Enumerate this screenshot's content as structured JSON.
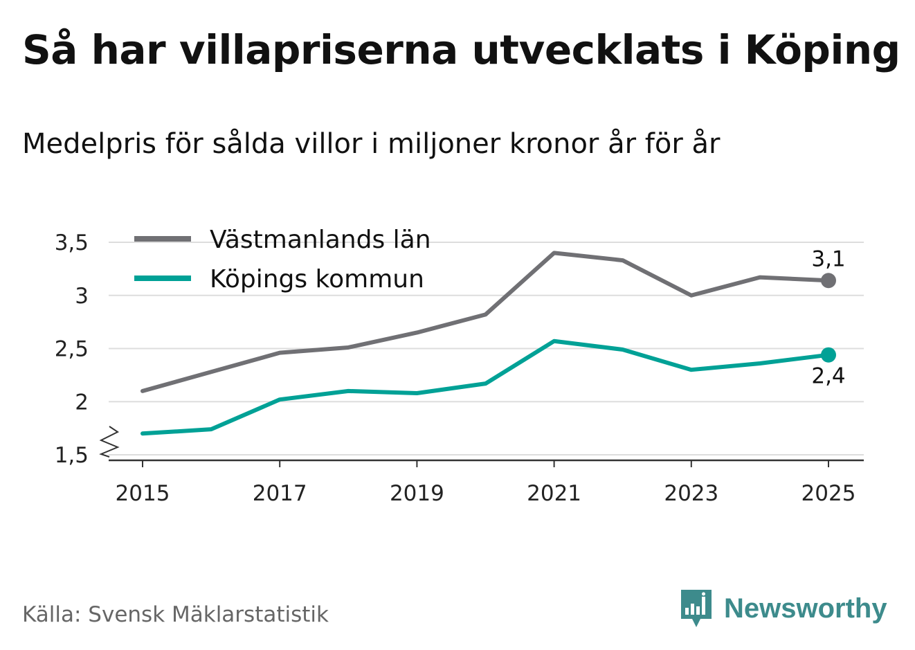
{
  "header": {
    "title": "Så har villapriserna utvecklats i Köping",
    "subtitle": "Medelpris för sålda villor i miljoner kronor år för år"
  },
  "footer": {
    "source": "Källa: Svensk Mäklarstatistik",
    "brand": "Newsworthy"
  },
  "colors": {
    "lan": "#707074",
    "kommun": "#00a196",
    "grid": "#dddddd",
    "axis": "#333333",
    "brand": "#3d8b8c"
  },
  "chart_data": {
    "type": "line",
    "title": "Så har villapriserna utvecklats i Köping",
    "subtitle": "Medelpris för sålda villor i miljoner kronor år för år",
    "x": [
      2015,
      2016,
      2017,
      2018,
      2019,
      2020,
      2021,
      2022,
      2023,
      2024,
      2025
    ],
    "x_ticks": [
      "2015",
      "2017",
      "2019",
      "2021",
      "2023",
      "2025"
    ],
    "y_ticks": [
      "1,5",
      "2",
      "2,5",
      "3",
      "3,5"
    ],
    "y_tick_values": [
      1.5,
      2,
      2.5,
      3,
      3.5
    ],
    "ylim": [
      1.45,
      3.5
    ],
    "xlabel": "",
    "ylabel": "",
    "y_axis_break": true,
    "legend_position": "top-left",
    "series": [
      {
        "name": "Västmanlands län",
        "color": "#707074",
        "values": [
          2.1,
          2.28,
          2.46,
          2.51,
          2.65,
          2.82,
          3.4,
          3.33,
          3.0,
          3.17,
          3.14
        ],
        "end_label": "3,1",
        "end_label_position": "above"
      },
      {
        "name": "Köpings kommun",
        "color": "#00a196",
        "values": [
          1.7,
          1.74,
          2.02,
          2.1,
          2.08,
          2.17,
          2.57,
          2.49,
          2.3,
          2.36,
          2.44
        ],
        "end_label": "2,4",
        "end_label_position": "below"
      }
    ]
  }
}
